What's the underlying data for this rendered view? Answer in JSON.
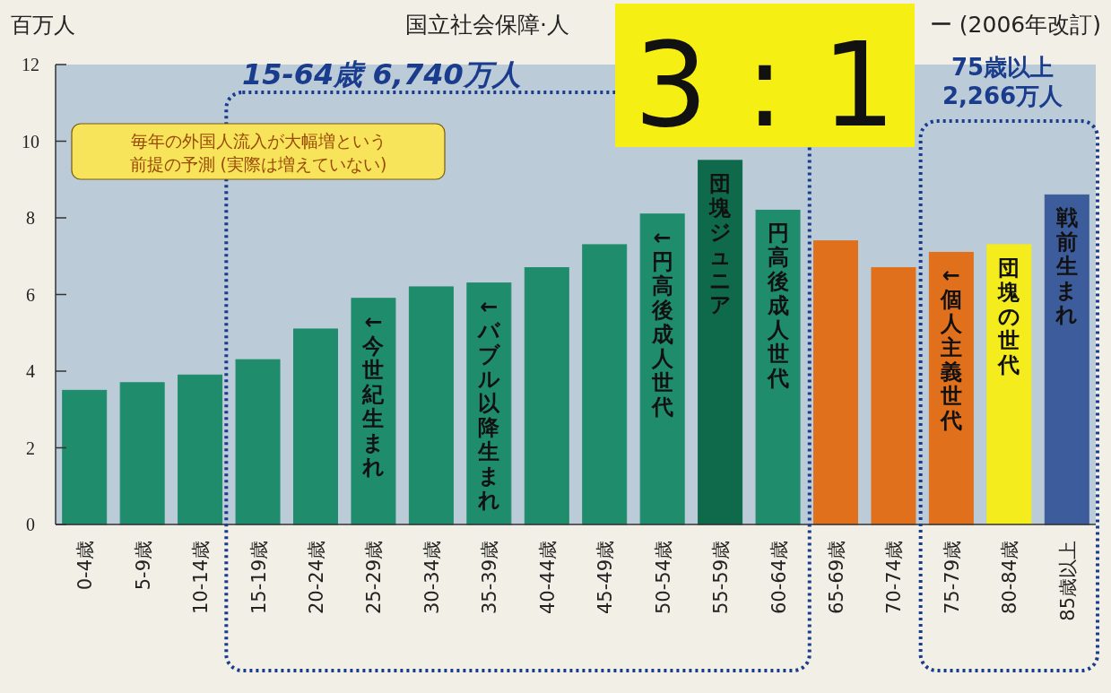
{
  "chart_data": {
    "type": "bar",
    "ylabel": "百万人",
    "categories": [
      "0-4歳",
      "5-9歳",
      "10-14歳",
      "15-19歳",
      "20-24歳",
      "25-29歳",
      "30-34歳",
      "35-39歳",
      "40-44歳",
      "45-49歳",
      "50-54歳",
      "55-59歳",
      "60-64歳",
      "65-69歳",
      "70-74歳",
      "75-79歳",
      "80-84歳",
      "85歳以上"
    ],
    "values": [
      3.5,
      3.7,
      3.9,
      4.3,
      5.1,
      5.9,
      6.2,
      6.3,
      6.7,
      7.3,
      8.1,
      9.5,
      8.2,
      7.4,
      6.7,
      7.1,
      7.3,
      8.6
    ],
    "colors": [
      "#1f8c6c",
      "#1f8c6c",
      "#1f8c6c",
      "#1f8c6c",
      "#1f8c6c",
      "#1f8c6c",
      "#1f8c6c",
      "#1f8c6c",
      "#1f8c6c",
      "#1f8c6c",
      "#1f8c6c",
      "#0f6a4c",
      "#1f8c6c",
      "#e0701c",
      "#e0701c",
      "#e0701c",
      "#f4ec1c",
      "#3c5c9c"
    ],
    "ylim": [
      0,
      12
    ],
    "yticks": [
      0,
      2,
      4,
      6,
      8,
      10,
      12
    ],
    "annotations": [
      "国立社会保障·人",
      "ー (2006年改訂)",
      "15-64歳 6,740万人",
      "75歳以上 2,266万人",
      "毎年の外国人流入が大幅増という前提の予測 (実際は増えていない)",
      "3 : 1",
      "←今世紀生まれ",
      "←バブル以降生まれ",
      "←円高後成人世代",
      "団塊ジュニア",
      "円高後成人世代",
      "←個人主義世代",
      "団塊の世代",
      "戦前生まれ"
    ]
  }
}
